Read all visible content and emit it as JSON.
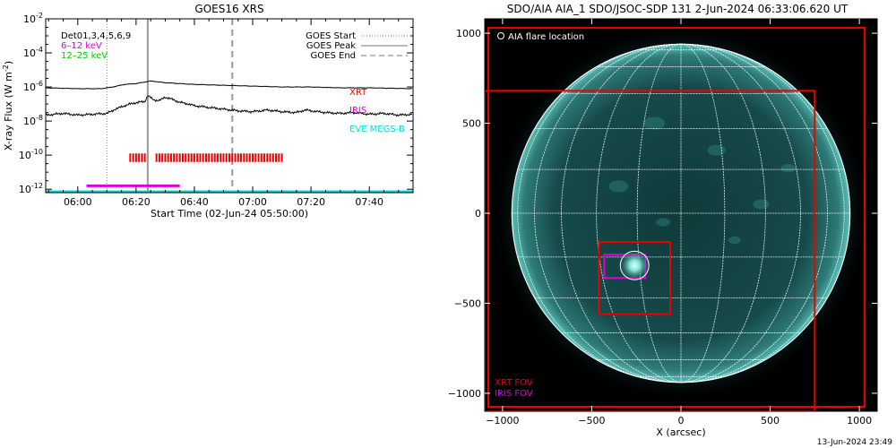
{
  "chart_data": [
    {
      "type": "line",
      "title": "GOES16 XRS",
      "xlabel": "Start Time (02-Jun-24 05:50:00)",
      "ylabel": "X-ray Flux (W m",
      "ylabel_sup": "-2",
      "ylabel_close": ")",
      "x_unit": "minutes since 05:50:00",
      "xlim": [
        -1,
        125
      ],
      "ylim_log10": [
        -12.2,
        -2
      ],
      "ytick_exponents": [
        -12,
        -10,
        -8,
        -6,
        -4,
        -2
      ],
      "ytick_base": "10",
      "xticks": [
        {
          "t": 10,
          "label": "06:00"
        },
        {
          "t": 30,
          "label": "06:20"
        },
        {
          "t": 50,
          "label": "06:40"
        },
        {
          "t": 70,
          "label": "07:00"
        },
        {
          "t": 90,
          "label": "07:20"
        },
        {
          "t": 110,
          "label": "07:40"
        }
      ],
      "top_left_legend": [
        {
          "text": "Det01,3,4,5,6,9",
          "color": "#000000"
        },
        {
          "text": "6–12 keV",
          "color": "#dd00dd"
        },
        {
          "text": "12–25 keV",
          "color": "#00cc00"
        }
      ],
      "line_legend": [
        {
          "text": "GOES Start",
          "style": "dotted"
        },
        {
          "text": "GOES Peak",
          "style": "solid"
        },
        {
          "text": "GOES End",
          "style": "dashed"
        }
      ],
      "instrument_legend": [
        {
          "text": "XRT",
          "color": "#ee0000"
        },
        {
          "text": "IRIS",
          "color": "#dd00dd"
        },
        {
          "text": "EVE MEGS-B",
          "color": "#00dddd"
        }
      ],
      "vlines": {
        "start": 20,
        "peak": 34,
        "end": 63
      },
      "series": [
        {
          "name": "GOES Long",
          "color": "#000000",
          "points": [
            [
              -1,
              -6.05
            ],
            [
              10,
              -6.1
            ],
            [
              18,
              -6.1
            ],
            [
              22,
              -6.0
            ],
            [
              26,
              -5.85
            ],
            [
              30,
              -5.8
            ],
            [
              35,
              -5.65
            ],
            [
              40,
              -5.75
            ],
            [
              50,
              -5.85
            ],
            [
              60,
              -5.9
            ],
            [
              70,
              -5.95
            ],
            [
              80,
              -6.0
            ],
            [
              90,
              -6.0
            ],
            [
              100,
              -6.05
            ],
            [
              110,
              -6.05
            ],
            [
              125,
              -6.1
            ]
          ]
        },
        {
          "name": "GOES Short",
          "color": "#000000",
          "points": [
            [
              -1,
              -7.65
            ],
            [
              5,
              -7.55
            ],
            [
              10,
              -7.65
            ],
            [
              15,
              -7.6
            ],
            [
              20,
              -7.55
            ],
            [
              23,
              -7.3
            ],
            [
              26,
              -7.1
            ],
            [
              29,
              -6.95
            ],
            [
              31,
              -6.9
            ],
            [
              33,
              -6.85
            ],
            [
              34,
              -6.5
            ],
            [
              36,
              -6.75
            ],
            [
              38,
              -6.8
            ],
            [
              40,
              -6.6
            ],
            [
              42,
              -6.7
            ],
            [
              45,
              -6.9
            ],
            [
              48,
              -7.0
            ],
            [
              50,
              -7.1
            ],
            [
              55,
              -7.2
            ],
            [
              60,
              -7.3
            ],
            [
              65,
              -7.4
            ],
            [
              70,
              -7.45
            ],
            [
              75,
              -7.35
            ],
            [
              80,
              -7.45
            ],
            [
              85,
              -7.5
            ],
            [
              88,
              -7.35
            ],
            [
              90,
              -7.4
            ],
            [
              95,
              -7.5
            ],
            [
              100,
              -7.55
            ],
            [
              105,
              -7.5
            ],
            [
              110,
              -7.6
            ],
            [
              115,
              -7.55
            ],
            [
              120,
              -7.65
            ],
            [
              125,
              -7.6
            ]
          ]
        }
      ],
      "xrt_bars": {
        "color": "#ee0000",
        "log_low": -10.4,
        "log_high": -9.9,
        "times": [
          28,
          29,
          30,
          31,
          32,
          33,
          37,
          38,
          39,
          40,
          41,
          42,
          43,
          44,
          45,
          46,
          47,
          48,
          49,
          50,
          51,
          52,
          53,
          54,
          55,
          56,
          57,
          58,
          59,
          60,
          61,
          62,
          63,
          64,
          65,
          66,
          67,
          68,
          69,
          70,
          71,
          72,
          73,
          74,
          75,
          76,
          77,
          78,
          79,
          80
        ]
      },
      "iris_span": {
        "color": "#dd00dd",
        "log": -11.8,
        "t_start": 13,
        "t_end": 45
      },
      "eve_line": {
        "color": "#00dddd",
        "log": -12.15
      }
    },
    {
      "type": "image",
      "title": "SDO/AIA AIA_1 SDO/JSOC-SDP 131  2-Jun-2024 06:33:06.620 UT",
      "xlabel": "X (arcsec)",
      "ylabel": "",
      "xlim": [
        -1100,
        1100
      ],
      "ylim": [
        -1100,
        1080
      ],
      "xticks": [
        -1000,
        -500,
        0,
        500,
        1000
      ],
      "yticks": [
        -1000,
        -500,
        0,
        500,
        1000
      ],
      "solar_radius_arcsec": 948,
      "grid_spacing_deg": 15,
      "fovs": [
        {
          "name": "XRT FOV",
          "color": "#ee0000",
          "x0": -1080,
          "x1": 1030,
          "y0": -1075,
          "y1": 1030
        },
        {
          "name": "XRT FOV",
          "color": "#ee0000",
          "x0": -1100,
          "x1": 750,
          "y0": -1100,
          "y1": 680
        },
        {
          "name": "XRT FOV",
          "color": "#ee0000",
          "x0": -460,
          "x1": -60,
          "y0": -560,
          "y1": -160
        },
        {
          "name": "IRIS FOV",
          "color": "#dd00dd",
          "x0": -430,
          "x1": -200,
          "y0": -360,
          "y1": -230
        }
      ],
      "flare": {
        "x": -260,
        "y": -290,
        "r": 80
      },
      "legend": [
        {
          "text": "XRT FOV",
          "color": "#ee0000"
        },
        {
          "text": "IRIS FOV",
          "color": "#dd00dd"
        }
      ],
      "top_label": "AIA flare location"
    }
  ],
  "footer_date": "13-Jun-2024 23:49"
}
